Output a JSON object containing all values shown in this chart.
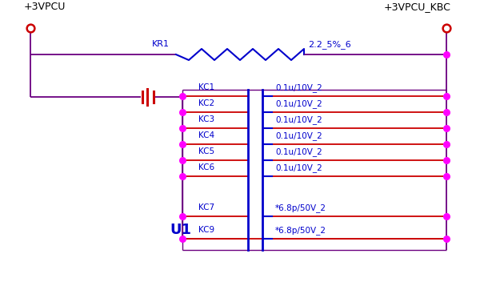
{
  "bg_color": "#ffffff",
  "wire_color": "#6B0080",
  "label_color": "#0000CC",
  "dot_color": "#FF00FF",
  "open_circle_color": "#CC0000",
  "resistor_color": "#0000CC",
  "red_color": "#CC0000",
  "title_top_left": "+3VPCU",
  "title_top_right": "+3VPCU_KBC",
  "resistor_label_left": "KR1",
  "resistor_label_right": "2.2_5%_6",
  "cap_rows": [
    {
      "left_label": "KC1",
      "right_label": "0.1u/10V_2"
    },
    {
      "left_label": "KC2",
      "right_label": "0.1u/10V_2"
    },
    {
      "left_label": "KC3",
      "right_label": "0.1u/10V_2"
    },
    {
      "left_label": "KC4",
      "right_label": "0.1u/10V_2"
    },
    {
      "left_label": "KC5",
      "right_label": "0.1u/10V_2"
    },
    {
      "left_label": "KC6",
      "right_label": "0.1u/10V_2"
    }
  ],
  "cap_rows2": [
    {
      "left_label": "KC7",
      "right_label": "*6.8p/50V_2"
    },
    {
      "left_label": "KC9",
      "right_label": "*6.8p/50V_2"
    }
  ],
  "u1_label": "U1",
  "figsize": [
    6.0,
    3.52
  ],
  "dpi": 100
}
